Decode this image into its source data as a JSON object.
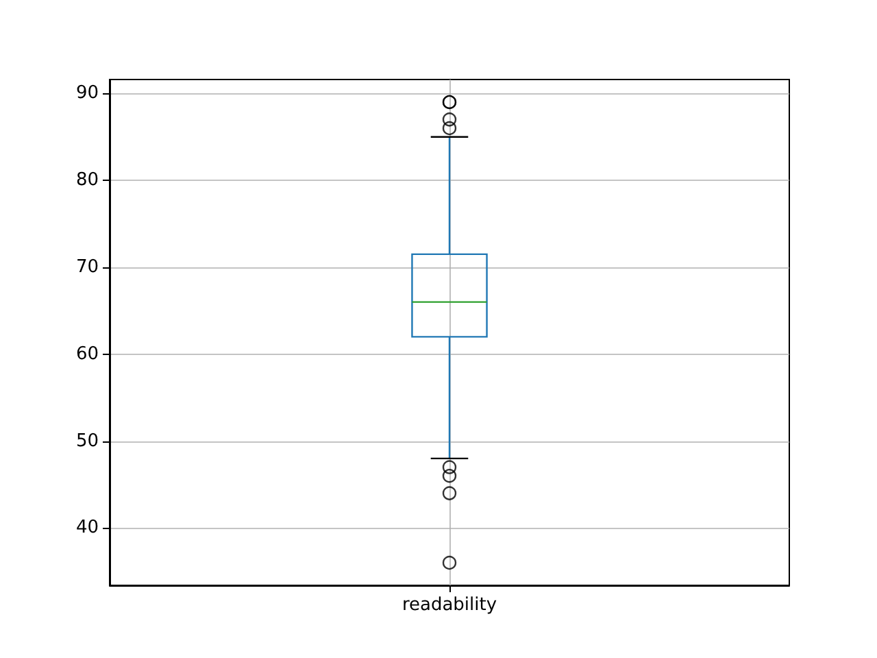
{
  "chart_data": {
    "type": "box",
    "categories": [
      "readability"
    ],
    "boxes": [
      {
        "low": 48,
        "q1": 62,
        "median": 66,
        "q3": 71.5,
        "high": 85,
        "outliers": [
          89,
          89,
          87,
          86,
          47,
          46,
          44,
          36
        ]
      }
    ],
    "ylim": [
      33.4,
      91.6
    ],
    "yticks": [
      40,
      50,
      60,
      70,
      80,
      90
    ],
    "grid": true
  }
}
